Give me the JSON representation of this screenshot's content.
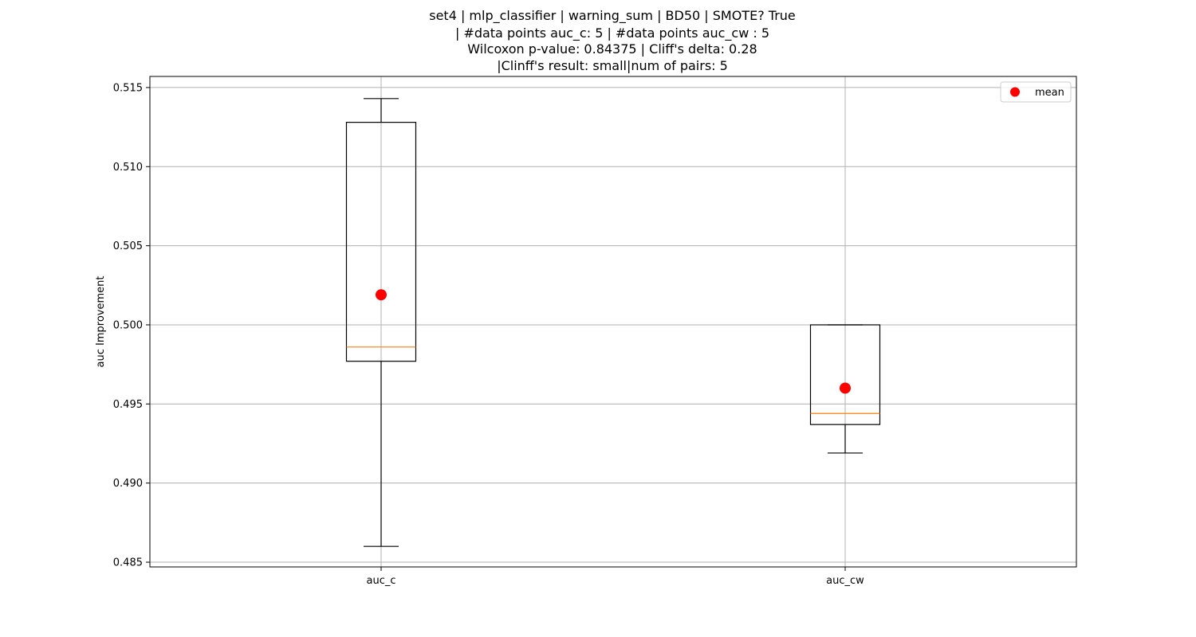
{
  "chart_data": {
    "type": "box",
    "title_lines": [
      "set4 | mlp_classifier | warning_sum | BD50 | SMOTE? True",
      "| #data points auc_c: 5 | #data points auc_cw : 5",
      "Wilcoxon p-value: 0.84375 | Cliff's delta: 0.28",
      "|Clinff's result: small|num of pairs: 5"
    ],
    "xlabel": "",
    "ylabel": "auc Improvement",
    "ylim": [
      0.4847,
      0.5157
    ],
    "yticks": [
      0.485,
      0.49,
      0.495,
      0.5,
      0.505,
      0.51,
      0.515
    ],
    "ytick_labels": [
      "0.485",
      "0.490",
      "0.495",
      "0.500",
      "0.505",
      "0.510",
      "0.515"
    ],
    "grid": true,
    "legend": {
      "placement": "top-right",
      "entries": [
        {
          "label": "mean",
          "color": "#ff0000",
          "marker": "circle"
        }
      ]
    },
    "colors": {
      "box": "#000000",
      "median": "#ff7f0e",
      "mean": "#ff0000",
      "grid": "#b0b0b0"
    },
    "categories": [
      "auc_c",
      "auc_cw"
    ],
    "boxes": [
      {
        "label": "auc_c",
        "whisker_low": 0.486,
        "q1": 0.4977,
        "median": 0.4986,
        "q3": 0.5128,
        "whisker_high": 0.5143,
        "mean": 0.5019
      },
      {
        "label": "auc_cw",
        "whisker_low": 0.4919,
        "q1": 0.4937,
        "median": 0.4944,
        "q3": 0.5,
        "whisker_high": 0.5,
        "mean": 0.496
      }
    ]
  }
}
